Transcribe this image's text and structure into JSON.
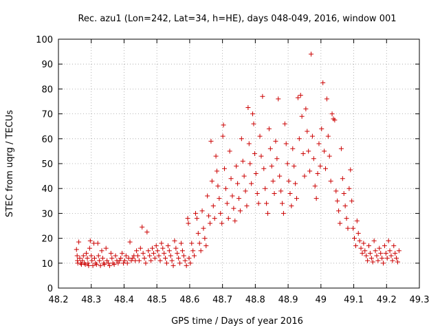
{
  "chart_data": {
    "type": "scatter",
    "title": "Rec. azu1 (Lon=242, Lat=34, h=HE), days 048-049, 2016, window 001",
    "xlabel": "GPS time / Days of year 2016",
    "ylabel": "STEC from uqrg / TECUs",
    "xlim": [
      48.2,
      49.3
    ],
    "ylim": [
      0,
      100
    ],
    "xticks": [
      "48.2",
      "48.3",
      "48.4",
      "48.5",
      "48.6",
      "48.7",
      "48.8",
      "48.9",
      "49",
      "49.1",
      "49.2",
      "49.3"
    ],
    "yticks": [
      "0",
      "10",
      "20",
      "30",
      "40",
      "50",
      "60",
      "70",
      "80",
      "90",
      "100"
    ],
    "grid": true,
    "marker": "plus",
    "color": "#cc0000",
    "points": [
      [
        48.255,
        15.5
      ],
      [
        48.257,
        13
      ],
      [
        48.258,
        11
      ],
      [
        48.259,
        10
      ],
      [
        48.262,
        18.5
      ],
      [
        48.265,
        12
      ],
      [
        48.268,
        10
      ],
      [
        48.27,
        9.5
      ],
      [
        48.273,
        11
      ],
      [
        48.276,
        13
      ],
      [
        48.279,
        10
      ],
      [
        48.282,
        9.5
      ],
      [
        48.285,
        14
      ],
      [
        48.288,
        12
      ],
      [
        48.29,
        10
      ],
      [
        48.292,
        9
      ],
      [
        48.295,
        16
      ],
      [
        48.297,
        19
      ],
      [
        48.3,
        13
      ],
      [
        48.302,
        11
      ],
      [
        48.305,
        9
      ],
      [
        48.308,
        18
      ],
      [
        48.31,
        12
      ],
      [
        48.313,
        10
      ],
      [
        48.316,
        9.5
      ],
      [
        48.32,
        18
      ],
      [
        48.322,
        13
      ],
      [
        48.325,
        11
      ],
      [
        48.328,
        9
      ],
      [
        48.332,
        15
      ],
      [
        48.335,
        12
      ],
      [
        48.338,
        10
      ],
      [
        48.34,
        9.5
      ],
      [
        48.345,
        16
      ],
      [
        48.348,
        11
      ],
      [
        48.352,
        10
      ],
      [
        48.356,
        9
      ],
      [
        48.36,
        14
      ],
      [
        48.363,
        12
      ],
      [
        48.366,
        10
      ],
      [
        48.37,
        9.5
      ],
      [
        48.374,
        13
      ],
      [
        48.378,
        11
      ],
      [
        48.382,
        10
      ],
      [
        48.386,
        11
      ],
      [
        48.39,
        12
      ],
      [
        48.394,
        14
      ],
      [
        48.398,
        10
      ],
      [
        48.402,
        11
      ],
      [
        48.406,
        13
      ],
      [
        48.41,
        10
      ],
      [
        48.414,
        12
      ],
      [
        48.418,
        18.5
      ],
      [
        48.422,
        11
      ],
      [
        48.426,
        12
      ],
      [
        48.43,
        13
      ],
      [
        48.434,
        11
      ],
      [
        48.438,
        15
      ],
      [
        48.442,
        13
      ],
      [
        48.446,
        11
      ],
      [
        48.45,
        16
      ],
      [
        48.455,
        24.5
      ],
      [
        48.458,
        14
      ],
      [
        48.462,
        12
      ],
      [
        48.466,
        10
      ],
      [
        48.47,
        22.5
      ],
      [
        48.474,
        15
      ],
      [
        48.478,
        13
      ],
      [
        48.482,
        11
      ],
      [
        48.486,
        16
      ],
      [
        48.49,
        14
      ],
      [
        48.494,
        12
      ],
      [
        48.498,
        17
      ],
      [
        48.502,
        15
      ],
      [
        48.506,
        13
      ],
      [
        48.51,
        11
      ],
      [
        48.514,
        18
      ],
      [
        48.518,
        16
      ],
      [
        48.522,
        14
      ],
      [
        48.526,
        12
      ],
      [
        48.53,
        10
      ],
      [
        48.534,
        17
      ],
      [
        48.538,
        15
      ],
      [
        48.542,
        13
      ],
      [
        48.546,
        11
      ],
      [
        48.55,
        9
      ],
      [
        48.554,
        19
      ],
      [
        48.558,
        16
      ],
      [
        48.562,
        14
      ],
      [
        48.566,
        12
      ],
      [
        48.57,
        10
      ],
      [
        48.574,
        18
      ],
      [
        48.578,
        15
      ],
      [
        48.582,
        13
      ],
      [
        48.586,
        11
      ],
      [
        48.59,
        9
      ],
      [
        48.594,
        28
      ],
      [
        48.596,
        26
      ],
      [
        48.598,
        12
      ],
      [
        48.602,
        10
      ],
      [
        48.606,
        18
      ],
      [
        48.61,
        15
      ],
      [
        48.614,
        13
      ],
      [
        48.618,
        30
      ],
      [
        48.622,
        28
      ],
      [
        48.626,
        22
      ],
      [
        48.63,
        18
      ],
      [
        48.634,
        15
      ],
      [
        48.638,
        31
      ],
      [
        48.642,
        24
      ],
      [
        48.646,
        20
      ],
      [
        48.65,
        17
      ],
      [
        48.654,
        37
      ],
      [
        48.658,
        29
      ],
      [
        48.662,
        26
      ],
      [
        48.665,
        59
      ],
      [
        48.668,
        43
      ],
      [
        48.672,
        33
      ],
      [
        48.676,
        28
      ],
      [
        48.68,
        53
      ],
      [
        48.683,
        47
      ],
      [
        48.686,
        41
      ],
      [
        48.69,
        36
      ],
      [
        48.694,
        30
      ],
      [
        48.698,
        26
      ],
      [
        48.701,
        61
      ],
      [
        48.703,
        65.5
      ],
      [
        48.706,
        48
      ],
      [
        48.71,
        40
      ],
      [
        48.714,
        34
      ],
      [
        48.718,
        28
      ],
      [
        48.722,
        55
      ],
      [
        48.726,
        44
      ],
      [
        48.73,
        37
      ],
      [
        48.734,
        32
      ],
      [
        48.738,
        27
      ],
      [
        48.742,
        49
      ],
      [
        48.746,
        42
      ],
      [
        48.75,
        36
      ],
      [
        48.754,
        31
      ],
      [
        48.758,
        60
      ],
      [
        48.762,
        51
      ],
      [
        48.766,
        45
      ],
      [
        48.77,
        39
      ],
      [
        48.774,
        33
      ],
      [
        48.778,
        72.5
      ],
      [
        48.781,
        58
      ],
      [
        48.784,
        50
      ],
      [
        48.788,
        42
      ],
      [
        48.792,
        70
      ],
      [
        48.795,
        66
      ],
      [
        48.798,
        54
      ],
      [
        48.802,
        46
      ],
      [
        48.806,
        38
      ],
      [
        48.81,
        34
      ],
      [
        48.814,
        61
      ],
      [
        48.818,
        53
      ],
      [
        48.822,
        77
      ],
      [
        48.826,
        48
      ],
      [
        48.83,
        40
      ],
      [
        48.834,
        34
      ],
      [
        48.838,
        30
      ],
      [
        48.842,
        64
      ],
      [
        48.846,
        56
      ],
      [
        48.85,
        49
      ],
      [
        48.854,
        43
      ],
      [
        48.858,
        38
      ],
      [
        48.862,
        59
      ],
      [
        48.866,
        52
      ],
      [
        48.87,
        76
      ],
      [
        48.874,
        45
      ],
      [
        48.878,
        39
      ],
      [
        48.882,
        34
      ],
      [
        48.886,
        30
      ],
      [
        48.89,
        66
      ],
      [
        48.894,
        58
      ],
      [
        48.898,
        50
      ],
      [
        48.902,
        43
      ],
      [
        48.906,
        38
      ],
      [
        48.91,
        33
      ],
      [
        48.914,
        56
      ],
      [
        48.918,
        49
      ],
      [
        48.922,
        42
      ],
      [
        48.926,
        36
      ],
      [
        48.93,
        76.5
      ],
      [
        48.934,
        60
      ],
      [
        48.938,
        77.5
      ],
      [
        48.942,
        69
      ],
      [
        48.946,
        54
      ],
      [
        48.95,
        45
      ],
      [
        48.954,
        72
      ],
      [
        48.958,
        63
      ],
      [
        48.962,
        55
      ],
      [
        48.966,
        47
      ],
      [
        48.97,
        94
      ],
      [
        48.974,
        61
      ],
      [
        48.978,
        52
      ],
      [
        48.982,
        41
      ],
      [
        48.986,
        36
      ],
      [
        48.99,
        46
      ],
      [
        48.994,
        58
      ],
      [
        48.998,
        49
      ],
      [
        49.002,
        64
      ],
      [
        49.006,
        82.5
      ],
      [
        49.01,
        55
      ],
      [
        49.014,
        48
      ],
      [
        49.018,
        76
      ],
      [
        49.022,
        61
      ],
      [
        49.026,
        53
      ],
      [
        49.03,
        43
      ],
      [
        49.034,
        70
      ],
      [
        49.038,
        68
      ],
      [
        49.042,
        67.5
      ],
      [
        49.046,
        39
      ],
      [
        49.05,
        35
      ],
      [
        49.054,
        31
      ],
      [
        49.058,
        26
      ],
      [
        49.062,
        56
      ],
      [
        49.066,
        44
      ],
      [
        49.07,
        38
      ],
      [
        49.074,
        33
      ],
      [
        49.078,
        28
      ],
      [
        49.082,
        24
      ],
      [
        49.086,
        40
      ],
      [
        49.09,
        47.5
      ],
      [
        49.094,
        35
      ],
      [
        49.098,
        24
      ],
      [
        49.102,
        20
      ],
      [
        49.106,
        17
      ],
      [
        49.11,
        27
      ],
      [
        49.114,
        22
      ],
      [
        49.118,
        19
      ],
      [
        49.122,
        16
      ],
      [
        49.126,
        14
      ],
      [
        49.13,
        18
      ],
      [
        49.134,
        15
      ],
      [
        49.138,
        13
      ],
      [
        49.142,
        11
      ],
      [
        49.146,
        17
      ],
      [
        49.15,
        14
      ],
      [
        49.154,
        12
      ],
      [
        49.158,
        10.5
      ],
      [
        49.162,
        19
      ],
      [
        49.166,
        15
      ],
      [
        49.17,
        13
      ],
      [
        49.174,
        11
      ],
      [
        49.178,
        16
      ],
      [
        49.182,
        14
      ],
      [
        49.186,
        12
      ],
      [
        49.19,
        10
      ],
      [
        49.194,
        17
      ],
      [
        49.198,
        14
      ],
      [
        49.202,
        12
      ],
      [
        49.206,
        19
      ],
      [
        49.21,
        15
      ],
      [
        49.214,
        13
      ],
      [
        49.218,
        11
      ],
      [
        49.222,
        17
      ],
      [
        49.226,
        14
      ],
      [
        49.23,
        12
      ],
      [
        49.234,
        10.5
      ],
      [
        49.238,
        15
      ]
    ]
  }
}
